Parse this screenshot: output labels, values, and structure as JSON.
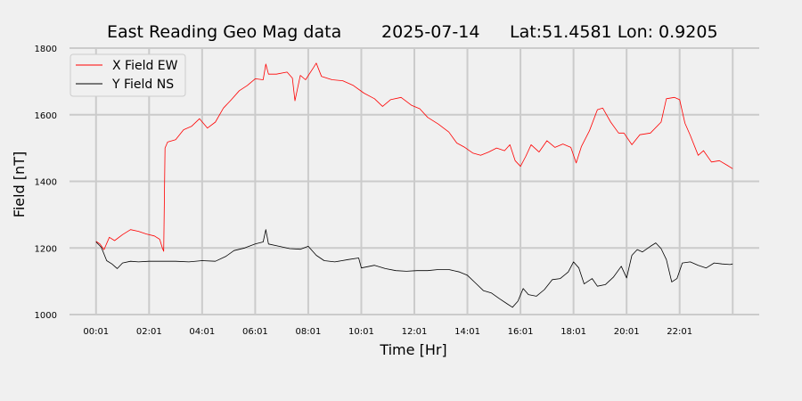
{
  "chart_data": {
    "type": "line",
    "title": {
      "name": "East Reading Geo Mag data",
      "date": "2025-07-14",
      "location": "Lat:51.4581  Lon: 0.9205"
    },
    "xlabel": "Time  [Hr]",
    "ylabel": "Field  [nT]",
    "xlim": [
      -1,
      25
    ],
    "ylim": [
      1000,
      1800
    ],
    "x_ticks": [
      0,
      2,
      4,
      6,
      8,
      10,
      12,
      14,
      16,
      18,
      20,
      22,
      24
    ],
    "x_tick_labels": [
      "00:01",
      "02:01",
      "04:01",
      "06:01",
      "08:01",
      "10:01",
      "12:01",
      "14:01",
      "16:01",
      "18:01",
      "20:01",
      "22:01",
      ""
    ],
    "y_ticks": [
      1000,
      1200,
      1400,
      1600,
      1800
    ],
    "y_tick_labels": [
      "1000",
      "1200",
      "1400",
      "1600",
      "1800"
    ],
    "grid": true,
    "legend_position": "top-left",
    "series": [
      {
        "name": "X Field EW",
        "color": "#ff0000",
        "points": [
          [
            0.0,
            1220
          ],
          [
            0.15,
            1212
          ],
          [
            0.3,
            1195
          ],
          [
            0.5,
            1232
          ],
          [
            0.7,
            1222
          ],
          [
            1.0,
            1240
          ],
          [
            1.3,
            1255
          ],
          [
            1.6,
            1250
          ],
          [
            1.9,
            1242
          ],
          [
            2.2,
            1236
          ],
          [
            2.4,
            1226
          ],
          [
            2.5,
            1200
          ],
          [
            2.55,
            1190
          ],
          [
            2.6,
            1500
          ],
          [
            2.7,
            1518
          ],
          [
            3.0,
            1525
          ],
          [
            3.3,
            1555
          ],
          [
            3.6,
            1565
          ],
          [
            3.9,
            1588
          ],
          [
            4.2,
            1560
          ],
          [
            4.5,
            1578
          ],
          [
            4.8,
            1620
          ],
          [
            5.1,
            1645
          ],
          [
            5.4,
            1672
          ],
          [
            5.7,
            1688
          ],
          [
            6.0,
            1708
          ],
          [
            6.3,
            1705
          ],
          [
            6.4,
            1752
          ],
          [
            6.5,
            1722
          ],
          [
            6.8,
            1722
          ],
          [
            7.2,
            1728
          ],
          [
            7.4,
            1710
          ],
          [
            7.5,
            1642
          ],
          [
            7.7,
            1718
          ],
          [
            7.9,
            1705
          ],
          [
            8.2,
            1742
          ],
          [
            8.3,
            1755
          ],
          [
            8.5,
            1715
          ],
          [
            8.9,
            1705
          ],
          [
            9.3,
            1702
          ],
          [
            9.7,
            1688
          ],
          [
            10.1,
            1665
          ],
          [
            10.5,
            1648
          ],
          [
            10.8,
            1625
          ],
          [
            11.1,
            1645
          ],
          [
            11.5,
            1652
          ],
          [
            11.9,
            1628
          ],
          [
            12.2,
            1618
          ],
          [
            12.5,
            1592
          ],
          [
            12.9,
            1572
          ],
          [
            13.3,
            1548
          ],
          [
            13.6,
            1515
          ],
          [
            13.9,
            1502
          ],
          [
            14.2,
            1485
          ],
          [
            14.5,
            1478
          ],
          [
            14.8,
            1488
          ],
          [
            15.1,
            1500
          ],
          [
            15.4,
            1492
          ],
          [
            15.6,
            1510
          ],
          [
            15.8,
            1462
          ],
          [
            16.0,
            1445
          ],
          [
            16.2,
            1475
          ],
          [
            16.4,
            1510
          ],
          [
            16.7,
            1488
          ],
          [
            17.0,
            1522
          ],
          [
            17.3,
            1502
          ],
          [
            17.6,
            1512
          ],
          [
            17.9,
            1502
          ],
          [
            18.1,
            1455
          ],
          [
            18.3,
            1505
          ],
          [
            18.6,
            1552
          ],
          [
            18.9,
            1615
          ],
          [
            19.1,
            1620
          ],
          [
            19.4,
            1578
          ],
          [
            19.7,
            1545
          ],
          [
            19.9,
            1545
          ],
          [
            20.2,
            1510
          ],
          [
            20.5,
            1540
          ],
          [
            20.9,
            1545
          ],
          [
            21.3,
            1578
          ],
          [
            21.5,
            1648
          ],
          [
            21.8,
            1652
          ],
          [
            22.0,
            1645
          ],
          [
            22.2,
            1575
          ],
          [
            22.4,
            1538
          ],
          [
            22.7,
            1478
          ],
          [
            22.9,
            1492
          ],
          [
            23.2,
            1458
          ],
          [
            23.5,
            1462
          ],
          [
            23.8,
            1448
          ],
          [
            24.0,
            1438
          ]
        ]
      },
      {
        "name": "Y Field NS",
        "color": "#000000",
        "points": [
          [
            0.0,
            1218
          ],
          [
            0.2,
            1202
          ],
          [
            0.4,
            1162
          ],
          [
            0.6,
            1152
          ],
          [
            0.8,
            1138
          ],
          [
            1.0,
            1155
          ],
          [
            1.3,
            1160
          ],
          [
            1.6,
            1158
          ],
          [
            2.0,
            1160
          ],
          [
            2.5,
            1160
          ],
          [
            3.0,
            1160
          ],
          [
            3.5,
            1158
          ],
          [
            4.0,
            1162
          ],
          [
            4.5,
            1160
          ],
          [
            4.9,
            1175
          ],
          [
            5.2,
            1192
          ],
          [
            5.6,
            1200
          ],
          [
            6.0,
            1212
          ],
          [
            6.3,
            1218
          ],
          [
            6.4,
            1255
          ],
          [
            6.5,
            1212
          ],
          [
            6.9,
            1205
          ],
          [
            7.3,
            1198
          ],
          [
            7.7,
            1196
          ],
          [
            8.0,
            1205
          ],
          [
            8.3,
            1178
          ],
          [
            8.6,
            1162
          ],
          [
            9.0,
            1158
          ],
          [
            9.5,
            1165
          ],
          [
            9.9,
            1170
          ],
          [
            10.0,
            1140
          ],
          [
            10.5,
            1148
          ],
          [
            10.9,
            1138
          ],
          [
            11.3,
            1132
          ],
          [
            11.7,
            1130
          ],
          [
            12.1,
            1132
          ],
          [
            12.5,
            1132
          ],
          [
            12.9,
            1135
          ],
          [
            13.3,
            1135
          ],
          [
            13.7,
            1128
          ],
          [
            14.0,
            1118
          ],
          [
            14.3,
            1095
          ],
          [
            14.6,
            1072
          ],
          [
            14.9,
            1065
          ],
          [
            15.2,
            1048
          ],
          [
            15.5,
            1032
          ],
          [
            15.7,
            1022
          ],
          [
            15.9,
            1040
          ],
          [
            16.1,
            1078
          ],
          [
            16.3,
            1060
          ],
          [
            16.6,
            1055
          ],
          [
            16.9,
            1075
          ],
          [
            17.2,
            1105
          ],
          [
            17.5,
            1108
          ],
          [
            17.8,
            1128
          ],
          [
            18.0,
            1158
          ],
          [
            18.2,
            1140
          ],
          [
            18.4,
            1092
          ],
          [
            18.7,
            1108
          ],
          [
            18.9,
            1085
          ],
          [
            19.2,
            1090
          ],
          [
            19.5,
            1112
          ],
          [
            19.8,
            1145
          ],
          [
            20.0,
            1110
          ],
          [
            20.2,
            1178
          ],
          [
            20.4,
            1195
          ],
          [
            20.6,
            1188
          ],
          [
            20.9,
            1205
          ],
          [
            21.1,
            1215
          ],
          [
            21.3,
            1198
          ],
          [
            21.5,
            1165
          ],
          [
            21.7,
            1098
          ],
          [
            21.9,
            1108
          ],
          [
            22.1,
            1155
          ],
          [
            22.4,
            1158
          ],
          [
            22.7,
            1148
          ],
          [
            23.0,
            1140
          ],
          [
            23.3,
            1155
          ],
          [
            23.6,
            1152
          ],
          [
            23.9,
            1150
          ],
          [
            24.0,
            1152
          ]
        ]
      }
    ]
  }
}
